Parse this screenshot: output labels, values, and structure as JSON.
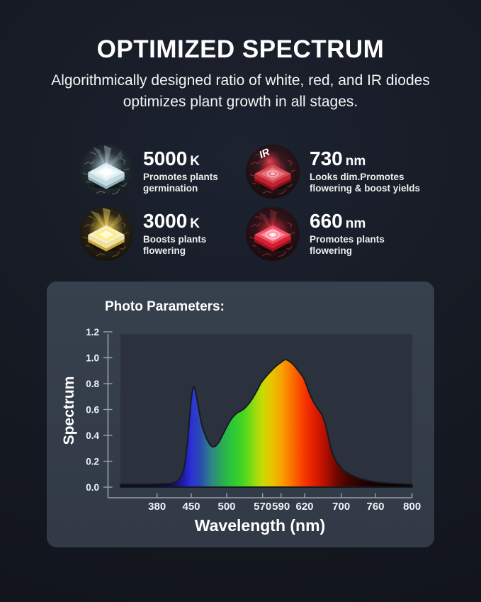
{
  "header": {
    "title": "OPTIMIZED SPECTRUM",
    "subtitle_line1": "Algorithmically designed ratio of white, red, and IR diodes",
    "subtitle_line2": "optimizes plant growth in all stages."
  },
  "diodes": [
    {
      "value": "5000",
      "unit": "K",
      "desc_line1": "Promotes plants",
      "desc_line2": "germination",
      "icon": "white-led-chip-icon"
    },
    {
      "value": "730",
      "unit": "nm",
      "desc_line1": "Looks dim.Promotes",
      "desc_line2": "flowering & boost yields",
      "icon": "ir-led-chip-icon",
      "badge": "IR"
    },
    {
      "value": "3000",
      "unit": "K",
      "desc_line1": "Boosts plants",
      "desc_line2": "flowering",
      "icon": "warm-led-chip-icon"
    },
    {
      "value": "660",
      "unit": "nm",
      "desc_line1": "Promotes plants",
      "desc_line2": "flowering",
      "icon": "red-led-chip-icon"
    }
  ],
  "chart": {
    "title": "Photo Parameters:",
    "ylabel": "Spectrum",
    "xlabel": "Wavelength (nm)"
  },
  "chart_data": {
    "type": "area",
    "title": "Photo Parameters:",
    "xlabel": "Wavelength (nm)",
    "ylabel": "Spectrum",
    "xticks": [
      "380",
      "450",
      "500",
      "570",
      "590",
      "620",
      "700",
      "760",
      "800"
    ],
    "yticks": [
      "0.0",
      "0.2",
      "0.4",
      "0.6",
      "0.8",
      "1.0",
      "1.2"
    ],
    "ylim": [
      0,
      1.2
    ],
    "xlim_nm": [
      305,
      800
    ],
    "legend": "none",
    "grid": "off",
    "points": [
      [
        305,
        0.022
      ],
      [
        355,
        0.022
      ],
      [
        390,
        0.025
      ],
      [
        410,
        0.03
      ],
      [
        422,
        0.05
      ],
      [
        430,
        0.09
      ],
      [
        437,
        0.18
      ],
      [
        443,
        0.38
      ],
      [
        447,
        0.56
      ],
      [
        450,
        0.68
      ],
      [
        453,
        0.775
      ],
      [
        456,
        0.74
      ],
      [
        460,
        0.62
      ],
      [
        465,
        0.48
      ],
      [
        471,
        0.385
      ],
      [
        477,
        0.325
      ],
      [
        482,
        0.312
      ],
      [
        488,
        0.34
      ],
      [
        494,
        0.4
      ],
      [
        500,
        0.465
      ],
      [
        507,
        0.515
      ],
      [
        514,
        0.55
      ],
      [
        521,
        0.575
      ],
      [
        528,
        0.59
      ],
      [
        535,
        0.61
      ],
      [
        543,
        0.645
      ],
      [
        551,
        0.69
      ],
      [
        559,
        0.745
      ],
      [
        567,
        0.805
      ],
      [
        575,
        0.865
      ],
      [
        583,
        0.925
      ],
      [
        590,
        0.965
      ],
      [
        595,
        0.985
      ],
      [
        600,
        0.975
      ],
      [
        606,
        0.945
      ],
      [
        612,
        0.9
      ],
      [
        618,
        0.85
      ],
      [
        624,
        0.79
      ],
      [
        630,
        0.73
      ],
      [
        637,
        0.675
      ],
      [
        644,
        0.63
      ],
      [
        650,
        0.6
      ],
      [
        656,
        0.57
      ],
      [
        661,
        0.535
      ],
      [
        666,
        0.475
      ],
      [
        671,
        0.4
      ],
      [
        676,
        0.32
      ],
      [
        681,
        0.26
      ],
      [
        687,
        0.215
      ],
      [
        694,
        0.175
      ],
      [
        700,
        0.148
      ],
      [
        708,
        0.118
      ],
      [
        717,
        0.095
      ],
      [
        727,
        0.076
      ],
      [
        738,
        0.06
      ],
      [
        750,
        0.048
      ],
      [
        762,
        0.038
      ],
      [
        775,
        0.03
      ],
      [
        788,
        0.025
      ],
      [
        800,
        0.022
      ]
    ],
    "gradient": [
      [
        305,
        "#0a0a10"
      ],
      [
        400,
        "#110a36"
      ],
      [
        432,
        "#1d18a6"
      ],
      [
        450,
        "#2b30d8"
      ],
      [
        463,
        "#2a4cb0"
      ],
      [
        478,
        "#2e8486"
      ],
      [
        493,
        "#2aaa56"
      ],
      [
        512,
        "#2cc838"
      ],
      [
        533,
        "#48d620"
      ],
      [
        553,
        "#90dc10"
      ],
      [
        569,
        "#c8da04"
      ],
      [
        581,
        "#eac200"
      ],
      [
        591,
        "#f8a000"
      ],
      [
        601,
        "#fa7c00"
      ],
      [
        611,
        "#fa5600"
      ],
      [
        623,
        "#f43200"
      ],
      [
        639,
        "#e22000"
      ],
      [
        656,
        "#c61400"
      ],
      [
        673,
        "#9e0c00"
      ],
      [
        691,
        "#6c0700"
      ],
      [
        712,
        "#440400"
      ],
      [
        742,
        "#1e0200"
      ],
      [
        772,
        "#0c0100"
      ],
      [
        800,
        "#060606"
      ]
    ],
    "colors": {
      "panel_bg": "#333c49",
      "plot_bg": "#2b323e",
      "axis": "#97a0aa",
      "text": "#ffffff"
    }
  }
}
